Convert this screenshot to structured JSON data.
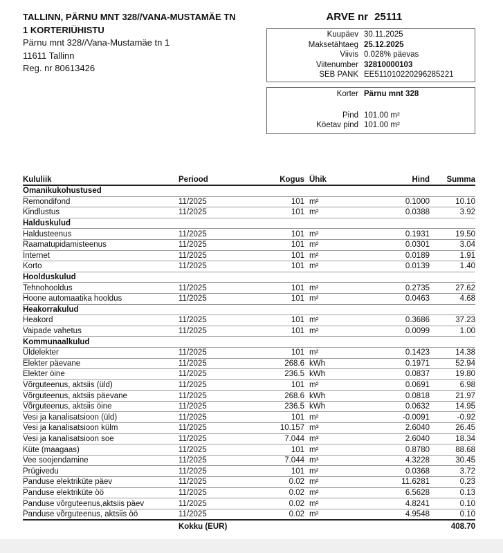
{
  "company": {
    "name_line1": "TALLINN, PÄRNU MNT 328//VANA-MUSTAMÄE TN",
    "name_line2": "1 KORTERIÜHISTU",
    "address": "Pärnu mnt 328//Vana-Mustamäe tn 1",
    "city": "11611 Tallinn",
    "reg": "Reg. nr 80613426"
  },
  "invoice": {
    "label": "ARVE nr",
    "number": "25111"
  },
  "details": [
    {
      "label": "Kuupäev",
      "value": "30.11.2025",
      "bold": false
    },
    {
      "label": "Maksetähtaeg",
      "value": "25.12.2025",
      "bold": true
    },
    {
      "label": "Viivis",
      "value": "0.028% päevas",
      "bold": false
    },
    {
      "label": "Viitenumber",
      "value": "32810000103",
      "bold": true
    },
    {
      "label": "SEB PANK",
      "value": "EE511010220296285221",
      "bold": false
    }
  ],
  "apartment": {
    "korter_label": "Korter",
    "korter": "Pärnu mnt 328",
    "pind_label": "Pind",
    "pind": "101.00 m²",
    "koetav_label": "Köetav pind",
    "koetav": "101.00 m²"
  },
  "table": {
    "headers": [
      "Kululiik",
      "Periood",
      "Kogus",
      "Ühik",
      "Hind",
      "Summa"
    ],
    "rows": [
      {
        "group": "Omanikukohustused"
      },
      [
        "Remondifond",
        "11/2025",
        "101",
        "m²",
        "0.1000",
        "10.10"
      ],
      [
        "Kindlustus",
        "11/2025",
        "101",
        "m²",
        "0.0388",
        "3.92"
      ],
      {
        "group": "Halduskulud"
      },
      [
        "Haldusteenus",
        "11/2025",
        "101",
        "m²",
        "0.1931",
        "19.50"
      ],
      [
        "Raamatupidamisteenus",
        "11/2025",
        "101",
        "m²",
        "0.0301",
        "3.04"
      ],
      [
        "Internet",
        "11/2025",
        "101",
        "m²",
        "0.0189",
        "1.91"
      ],
      [
        "Korto",
        "11/2025",
        "101",
        "m²",
        "0.0139",
        "1.40"
      ],
      {
        "group": "Hoolduskulud"
      },
      [
        "Tehnohooldus",
        "11/2025",
        "101",
        "m²",
        "0.2735",
        "27.62"
      ],
      [
        "Hoone automaatika hooldus",
        "11/2025",
        "101",
        "m²",
        "0.0463",
        "4.68"
      ],
      {
        "group": "Heakorrakulud"
      },
      [
        "Heakord",
        "11/2025",
        "101",
        "m²",
        "0.3686",
        "37.23"
      ],
      [
        "Vaipade vahetus",
        "11/2025",
        "101",
        "m²",
        "0.0099",
        "1.00"
      ],
      {
        "group": "Kommunaalkulud"
      },
      [
        "Üldelekter",
        "11/2025",
        "101",
        "m²",
        "0.1423",
        "14.38"
      ],
      [
        "Elekter päevane",
        "11/2025",
        "268.6",
        "kWh",
        "0.1971",
        "52.94"
      ],
      [
        "Elekter öine",
        "11/2025",
        "236.5",
        "kWh",
        "0.0837",
        "19.80"
      ],
      [
        "Võrguteenus, aktsiis (üld)",
        "11/2025",
        "101",
        "m²",
        "0.0691",
        "6.98"
      ],
      [
        "Võrguteenus, aktsiis päevane",
        "11/2025",
        "268.6",
        "kWh",
        "0.0818",
        "21.97"
      ],
      [
        "Võrguteenus, aktsiis öine",
        "11/2025",
        "236.5",
        "kWh",
        "0.0632",
        "14.95"
      ],
      [
        "Vesi ja kanalisatsioon (üld)",
        "11/2025",
        "101",
        "m²",
        "-0.0091",
        "-0.92"
      ],
      [
        "Vesi ja kanalisatsioon külm",
        "11/2025",
        "10.157",
        "m³",
        "2.6040",
        "26.45"
      ],
      [
        "Vesi ja kanalisatsioon soe",
        "11/2025",
        "7.044",
        "m³",
        "2.6040",
        "18.34"
      ],
      [
        "Küte (maagaas)",
        "11/2025",
        "101",
        "m²",
        "0.8780",
        "88.68"
      ],
      [
        "Vee soojendamine",
        "11/2025",
        "7.044",
        "m³",
        "4.3228",
        "30.45"
      ],
      [
        "Prügivedu",
        "11/2025",
        "101",
        "m²",
        "0.0368",
        "3.72"
      ],
      [
        "Panduse elektriküte päev",
        "11/2025",
        "0.02",
        "m²",
        "11.6281",
        "0.23"
      ],
      [
        "Panduse elektriküte öö",
        "11/2025",
        "0.02",
        "m²",
        "6.5628",
        "0.13"
      ],
      [
        "Panduse võrguteenus,aktsiis päev",
        "11/2025",
        "0.02",
        "m²",
        "4.8241",
        "0.10"
      ],
      [
        "Panduse võrguteenus, aktsiis öö",
        "11/2025",
        "0.02",
        "m²",
        "4.9548",
        "0.10"
      ]
    ],
    "total_label": "Kokku (EUR)",
    "total": "408.70"
  }
}
